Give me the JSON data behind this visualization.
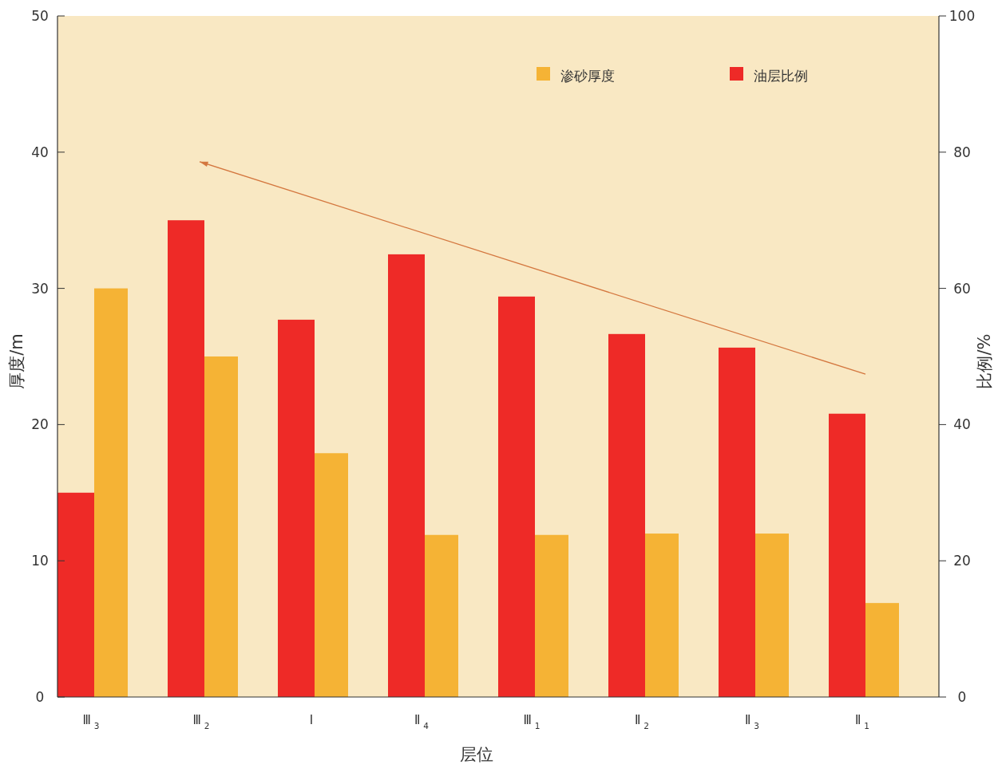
{
  "chart_data": {
    "type": "bar",
    "xlabel": "层位",
    "ylabel": "厚度/m",
    "y2label": "比例/%",
    "categories": [
      "Ⅲ$_{3}$",
      "Ⅲ$_{2}$",
      "Ⅰ",
      "Ⅱ$_{4}$",
      "Ⅲ$_{1}$",
      "Ⅱ$_{2}$",
      "Ⅱ$_{3}$",
      "Ⅱ$_{1}$"
    ],
    "series": [
      {
        "name": "渗砂厚度",
        "color": "#f5b335",
        "values": [
          30,
          25,
          17.9,
          11.9,
          11.9,
          12,
          12,
          6.9
        ]
      },
      {
        "name": "油层比例",
        "color": "#ee2a27",
        "axis": "y2",
        "values": [
          30,
          70,
          55.4,
          65,
          58.8,
          53.3,
          51.3,
          41.6
        ]
      }
    ],
    "ylim": [
      0,
      50
    ],
    "yticks": [
      0,
      10,
      20,
      30,
      40,
      50
    ],
    "y2lim": [
      0,
      100
    ],
    "y2ticks": [
      0,
      20,
      40,
      60,
      80,
      100
    ],
    "legend": "top right",
    "grid": false
  }
}
